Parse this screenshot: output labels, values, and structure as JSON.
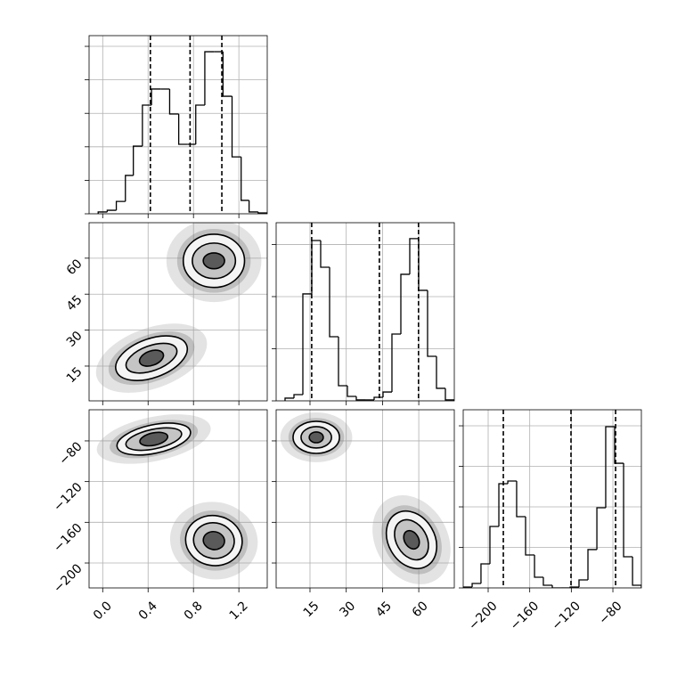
{
  "chart_data": [
    {
      "type": "histogram",
      "bins": [
        -0.04,
        0.04,
        0.12,
        0.2,
        0.27,
        0.35,
        0.43,
        0.51,
        0.59,
        0.67,
        0.75,
        0.82,
        0.9,
        0.98,
        1.06,
        1.14,
        1.22,
        1.29,
        1.37,
        1.45
      ],
      "counts": [
        11,
        21,
        74,
        229,
        404,
        649,
        745,
        745,
        596,
        415,
        415,
        649,
        968,
        968,
        702,
        340,
        80,
        11,
        5
      ],
      "quantiles": [
        0.42,
        0.77,
        1.05
      ],
      "xlim": [
        -0.12,
        1.45
      ],
      "xticks": [
        0,
        0.4,
        0.8,
        1.2
      ],
      "ylim": [
        0,
        1064
      ],
      "yticks": [
        0,
        200,
        400,
        600,
        800,
        1000
      ],
      "grid": true,
      "color": "#000000"
    },
    {
      "type": "contour",
      "xlim": [
        -0.12,
        1.45
      ],
      "xticks": [
        0,
        0.4,
        0.8,
        1.2
      ],
      "ylim": [
        0.5,
        74.8
      ],
      "yticks": [
        15,
        30,
        45,
        60
      ],
      "clusters": [
        {
          "center": [
            0.43,
            18.3
          ],
          "rx": [
            0.33,
            0.235,
            0.11
          ],
          "ry": [
            8.1,
            5.2,
            3.0
          ],
          "angle": -20
        },
        {
          "center": [
            0.98,
            58.9
          ],
          "rx": [
            0.27,
            0.19,
            0.094
          ],
          "ry": [
            11.1,
            7.4,
            3.3
          ],
          "angle": 0
        }
      ],
      "fills": [
        "#f4f4f4",
        "#c4c4c4",
        "#5a5a5a"
      ],
      "grid": true,
      "color": "#000000"
    },
    {
      "type": "histogram",
      "bins": [
        4.68,
        8.37,
        12.05,
        15.74,
        19.42,
        23.11,
        26.79,
        30.48,
        34.16,
        37.85,
        41.53,
        45.22,
        48.9,
        52.59,
        56.27,
        59.96,
        63.64,
        67.33,
        71.01,
        74.7
      ],
      "counts": [
        26,
        60,
        1026,
        1538,
        1282,
        615,
        145,
        43,
        9,
        9,
        34,
        85,
        641,
        1214,
        1556,
        1060,
        427,
        120,
        9
      ],
      "quantiles": [
        15.7,
        43.7,
        59.9
      ],
      "xlim": [
        1,
        74.7
      ],
      "xticks": [
        15,
        30,
        45,
        60
      ],
      "ylim": [
        0,
        1709
      ],
      "yticks": [
        0,
        500,
        1000,
        1500
      ],
      "grid": true,
      "color": "#000000"
    },
    {
      "type": "contour",
      "xlim": [
        -0.12,
        1.45
      ],
      "xticks": [
        {
          "value": 0,
          "label": "0.0"
        },
        0.4,
        0.8,
        1.2
      ],
      "ylim": [
        -224.5,
        -49.4
      ],
      "yticks": [
        {
          "value": -200,
          "label": "−200"
        },
        {
          "value": -160,
          "label": "−160"
        },
        {
          "value": -120,
          "label": "−120"
        },
        {
          "value": -80,
          "label": "−80"
        }
      ],
      "clusters": [
        {
          "center": [
            0.45,
            -78.2
          ],
          "rx": [
            0.33,
            0.25,
            0.125
          ],
          "ry": [
            14,
            9.6,
            6.1
          ],
          "angle": -12
        },
        {
          "center": [
            0.98,
            -178
          ],
          "rx": [
            0.25,
            0.18,
            0.094
          ],
          "ry": [
            24.5,
            17.5,
            8.8
          ],
          "angle": 10
        }
      ],
      "fills": [
        "#f4f4f4",
        "#c4c4c4",
        "#5a5a5a"
      ],
      "grid": true,
      "color": "#000000"
    },
    {
      "type": "contour",
      "xlim": [
        1,
        74.7
      ],
      "xticks": [
        15,
        30,
        45,
        60
      ],
      "ylim": [
        -224.5,
        -49.4
      ],
      "yticks": [
        -200,
        -160,
        -120,
        -80
      ],
      "clusters": [
        {
          "center": [
            17.6,
            -76.5
          ],
          "rx": [
            9.6,
            6.3,
            2.9
          ],
          "ry": [
            15.8,
            10.5,
            5.3
          ],
          "angle": 0
        },
        {
          "center": [
            57,
            -177.2
          ],
          "rx": [
            9.6,
            6.3,
            2.9
          ],
          "ry": [
            29.8,
            21,
            9.6
          ],
          "angle": -30
        }
      ],
      "fills": [
        "#f4f4f4",
        "#c4c4c4",
        "#5a5a5a"
      ],
      "grid": true,
      "color": "#000000"
    },
    {
      "type": "histogram",
      "bins": [
        -224,
        -215.4,
        -206.9,
        -198.3,
        -189.7,
        -181.1,
        -172.6,
        -164.0,
        -155.4,
        -146.9,
        -138.3,
        -129.7,
        -121.1,
        -112.6,
        -104.0,
        -95.4,
        -86.9,
        -78.3,
        -69.7,
        -61.1,
        -52.6
      ],
      "counts": [
        11,
        55,
        297,
        758,
        1286,
        1319,
        879,
        407,
        132,
        33,
        0,
        0,
        11,
        99,
        473,
        989,
        1989,
        1538,
        385,
        33
      ],
      "quantiles": [
        -185.4,
        -120.3,
        -77.4
      ],
      "xlim": [
        -224,
        -52.6
      ],
      "xticks": [
        {
          "value": -200,
          "label": "−200"
        },
        {
          "value": -160,
          "label": "−160"
        },
        {
          "value": -120,
          "label": "−120"
        },
        {
          "value": -80,
          "label": "−80"
        }
      ],
      "ylim": [
        0,
        2198
      ],
      "yticks": [
        0,
        500,
        1000,
        1500,
        2000
      ],
      "grid": true,
      "color": "#000000"
    }
  ]
}
